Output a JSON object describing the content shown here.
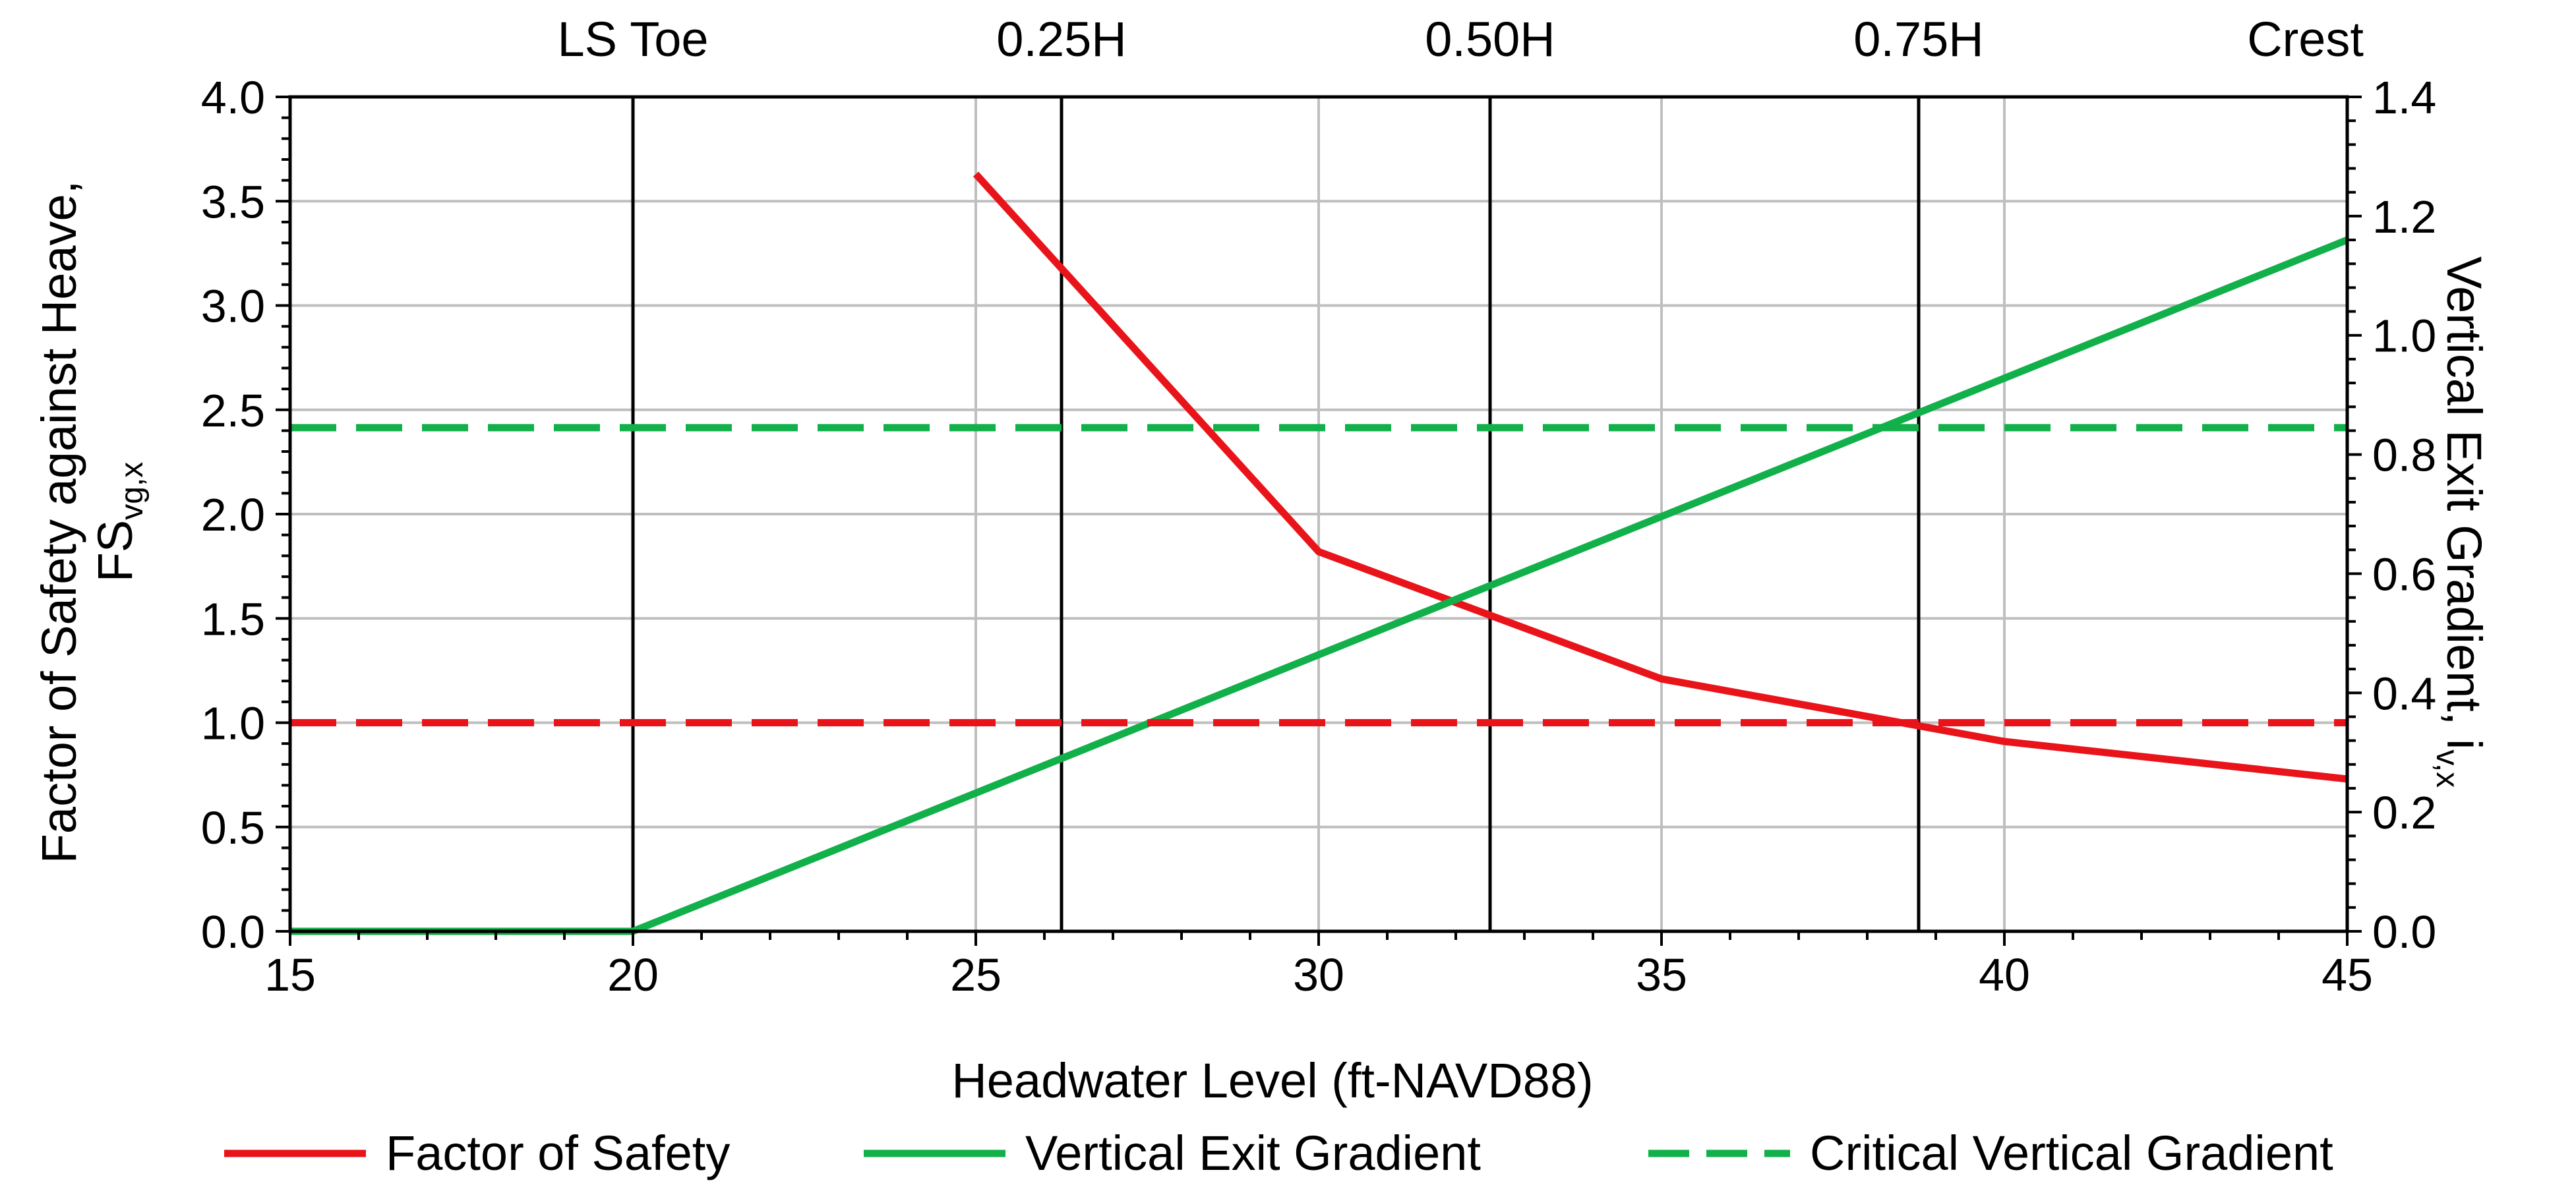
{
  "chart_data": {
    "type": "line",
    "xlabel": "Headwater Level (ft-NAVD88)",
    "ylabel_left": {
      "line1": "Factor of Safety against Heave,",
      "base": "FS",
      "sub": "vg,x"
    },
    "ylabel_right": {
      "base": "Vertical Exit Gradient, i",
      "sub": "v,x"
    },
    "xlim": [
      15,
      45
    ],
    "ylim_left": [
      0,
      4.0
    ],
    "ylim_right": [
      0,
      1.4
    ],
    "x_ticks": [
      15,
      20,
      25,
      30,
      35,
      40,
      45
    ],
    "x_tick_labels": [
      "15",
      "20",
      "25",
      "30",
      "35",
      "40",
      "45"
    ],
    "y_left_ticks": [
      0,
      0.5,
      1.0,
      1.5,
      2.0,
      2.5,
      3.0,
      3.5,
      4.0
    ],
    "y_left_tick_labels": [
      "0.0",
      "0.5",
      "1.0",
      "1.5",
      "2.0",
      "2.5",
      "3.0",
      "3.5",
      "4.0"
    ],
    "y_right_ticks": [
      0,
      0.2,
      0.4,
      0.6,
      0.8,
      1.0,
      1.2,
      1.4
    ],
    "y_right_tick_labels": [
      "0.0",
      "0.2",
      "0.4",
      "0.6",
      "0.8",
      "1.0",
      "1.2",
      "1.4"
    ],
    "grid": true,
    "reference_lines": [
      {
        "label": "LS Toe",
        "x": 20
      },
      {
        "label": "0.25H",
        "x": 26.25
      },
      {
        "label": "0.50H",
        "x": 32.5
      },
      {
        "label": "0.75H",
        "x": 38.75
      },
      {
        "label": "Crest",
        "x": 45
      }
    ],
    "series": [
      {
        "name": "Factor of Safety",
        "axis": "left",
        "style": "solid",
        "color": "#e8141a",
        "x": [
          25,
          30,
          35,
          40,
          45
        ],
        "y": [
          3.63,
          1.82,
          1.21,
          0.91,
          0.73
        ]
      },
      {
        "name": "Vertical Exit Gradient",
        "axis": "right",
        "style": "solid",
        "color": "#12b04a",
        "x": [
          15,
          20,
          45
        ],
        "y": [
          0,
          0,
          1.16
        ]
      },
      {
        "name": "Critical Vertical Gradient",
        "axis": "right",
        "style": "dashed",
        "color": "#12b04a",
        "x": [
          15,
          45
        ],
        "y": [
          0.845,
          0.845
        ]
      },
      {
        "name": "FS = 1.0",
        "axis": "left",
        "style": "dashed",
        "color": "#e8141a",
        "x": [
          15,
          45
        ],
        "y": [
          1.0,
          1.0
        ],
        "in_legend": false
      }
    ],
    "legend": {
      "position": "bottom",
      "entries": [
        "Factor of Safety",
        "Vertical Exit Gradient",
        "Critical Vertical Gradient"
      ]
    }
  }
}
